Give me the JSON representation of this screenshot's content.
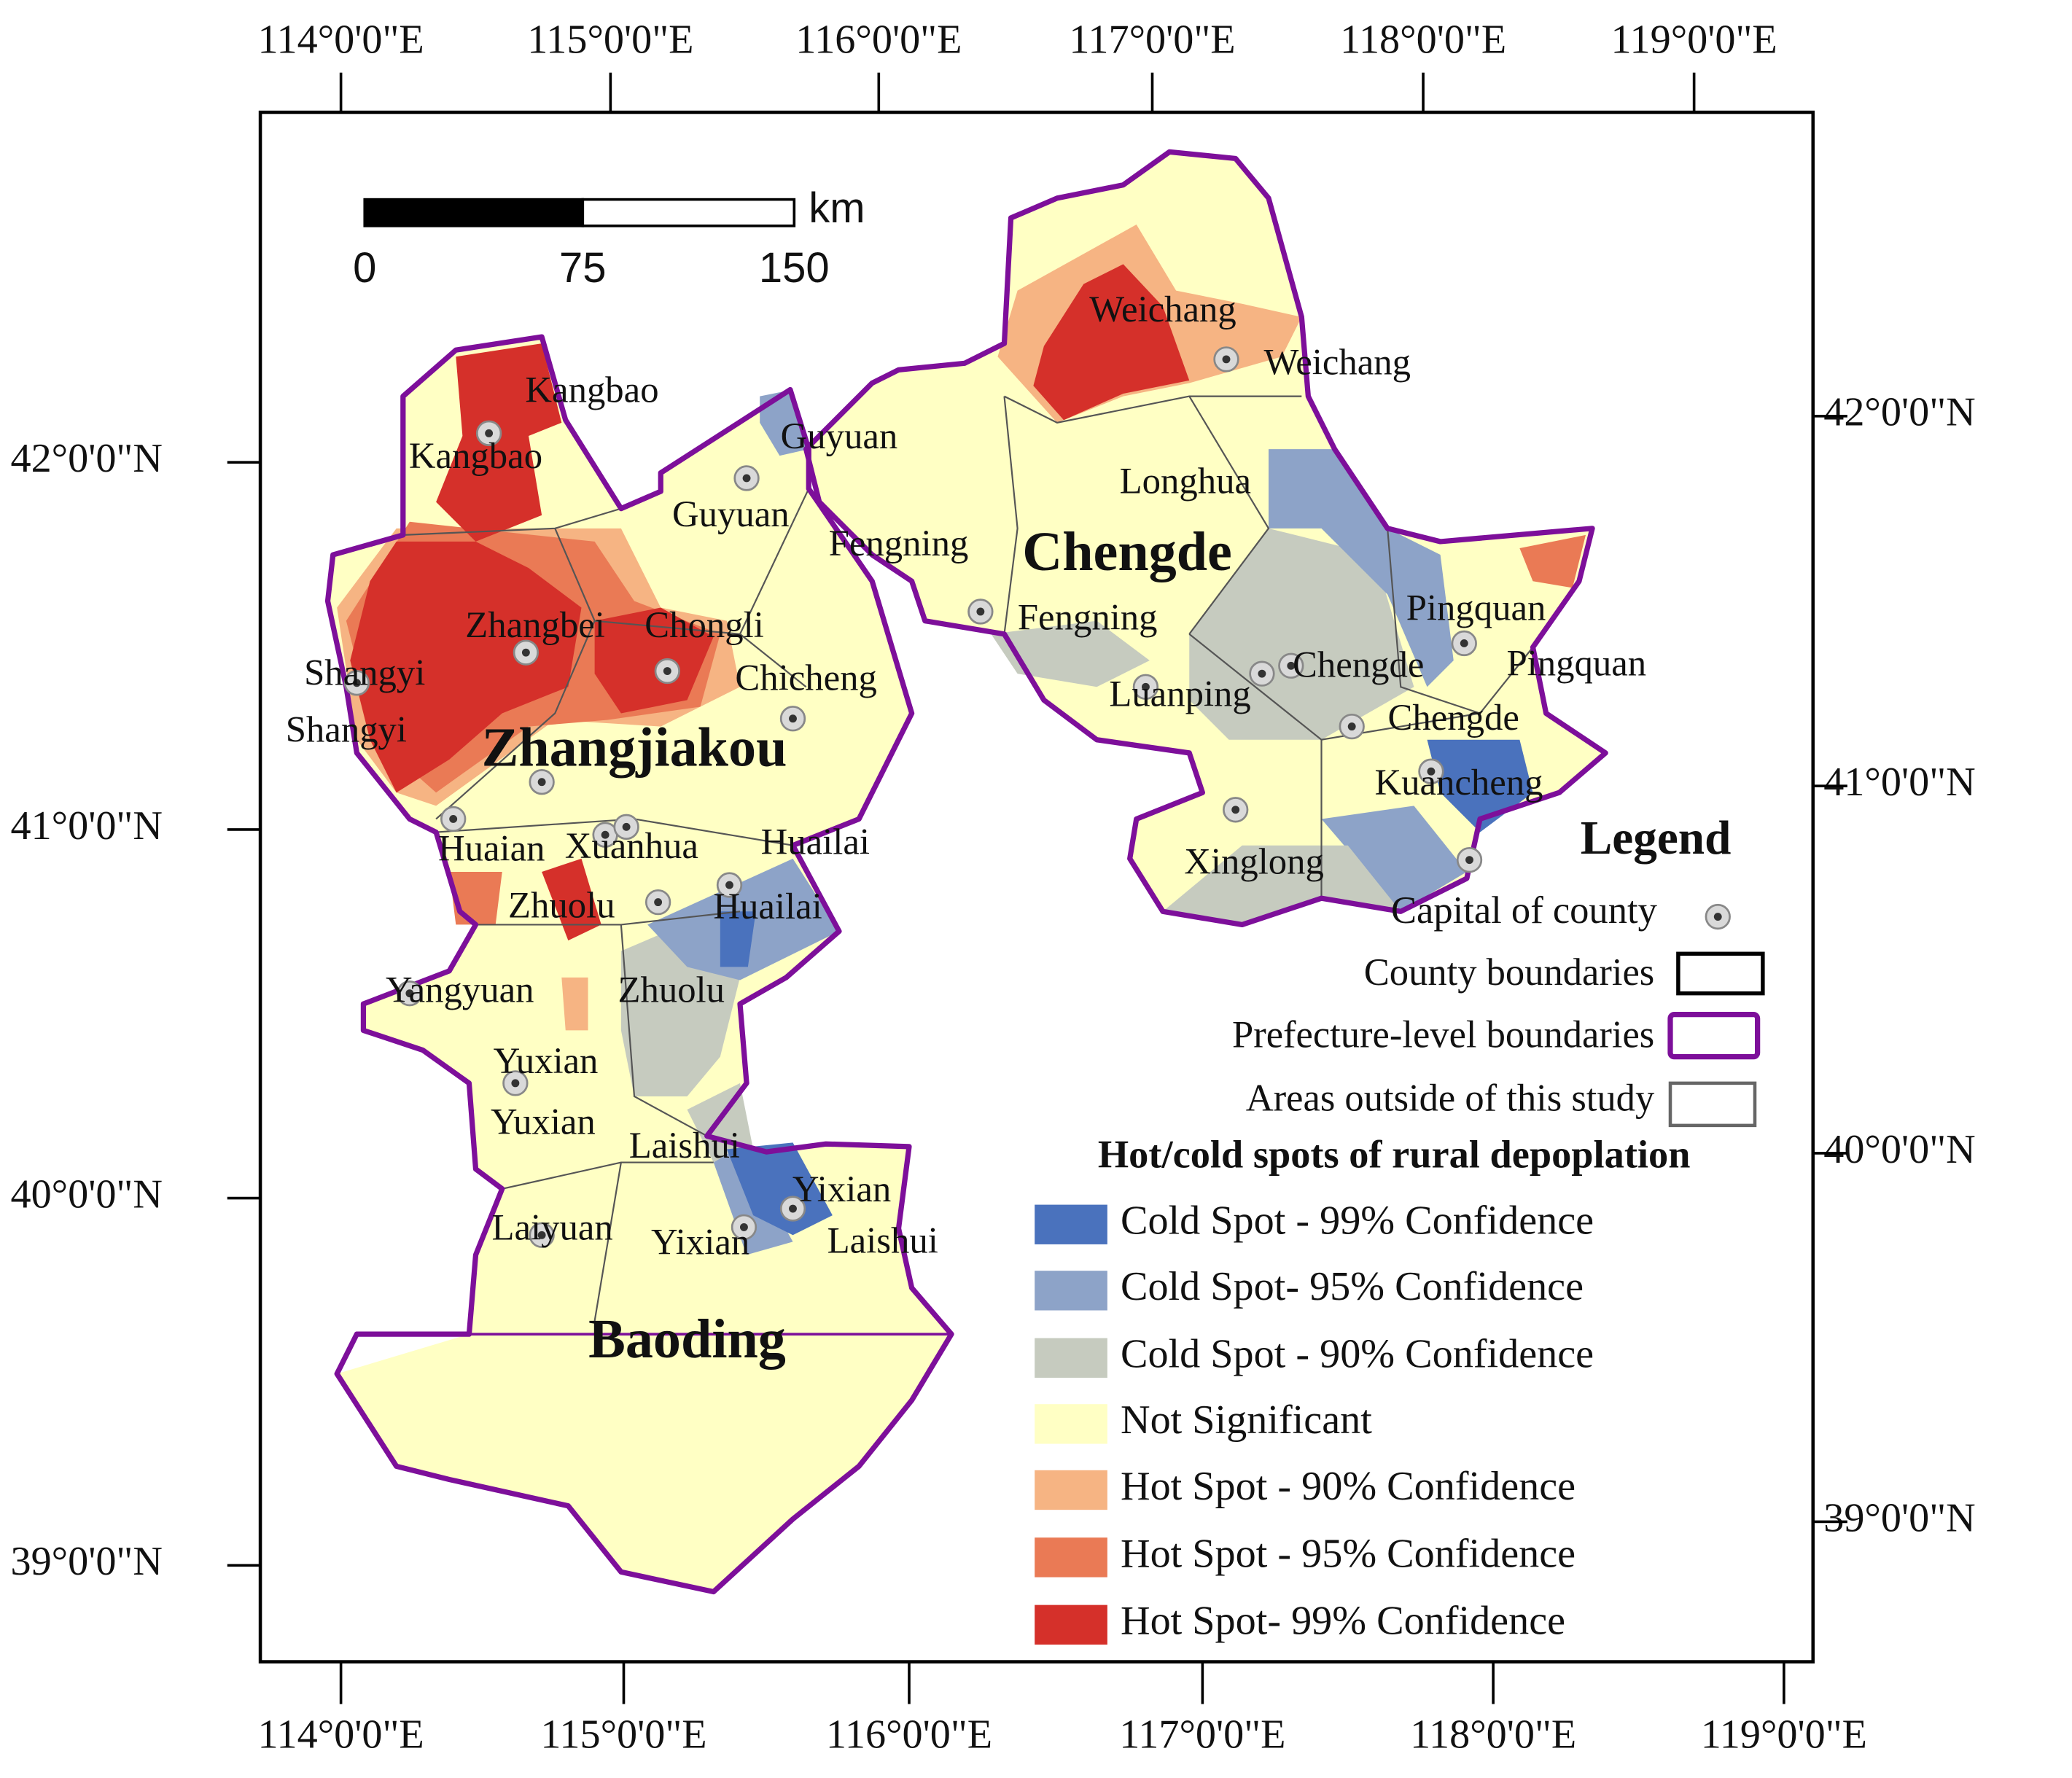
{
  "axes": {
    "top": [
      "114°0'0\"E",
      "115°0'0\"E",
      "116°0'0\"E",
      "117°0'0\"E",
      "118°0'0\"E",
      "119°0'0\"E"
    ],
    "bottom": [
      "114°0'0\"E",
      "115°0'0\"E",
      "116°0'0\"E",
      "117°0'0\"E",
      "118°0'0\"E",
      "119°0'0\"E"
    ],
    "left": [
      "42°0'0\"N",
      "41°0'0\"N",
      "40°0'0\"N",
      "39°0'0\"N"
    ],
    "right": [
      "42°0'0\"N",
      "41°0'0\"N",
      "40°0'0\"N",
      "39°0'0\"N"
    ]
  },
  "scale_bar": {
    "ticks": [
      "0",
      "75",
      "150"
    ],
    "unit": "km"
  },
  "map": {
    "prefectures": [
      "Zhangjiakou",
      "Chengde",
      "Baoding"
    ],
    "places": [
      "Weichang",
      "Weichang",
      "Kangbao",
      "Kangbao",
      "Guyuan",
      "Guyuan",
      "Longhua",
      "Fengning",
      "Fengning",
      "Pingquan",
      "Pingquan",
      "Zhangbei",
      "Chongli",
      "Shangyi",
      "Chicheng",
      "Chengde",
      "Luanping",
      "Shangyi",
      "Chengde",
      "Kuancheng",
      "Huaian",
      "Xuanhua",
      "Huailai",
      "Xinglong",
      "Zhuolu",
      "Huailai",
      "Yangyuan",
      "Zhuolu",
      "Yuxian",
      "Yuxian",
      "Laishui",
      "Yixian",
      "Laiyuan",
      "Yixian",
      "Laishui"
    ]
  },
  "legend": {
    "title": "Legend",
    "symbols": [
      "Capital of county",
      "County boundaries",
      "Prefecture-level boundaries",
      "Areas outside of this study"
    ],
    "heading": "Hot/cold spots of rural depoplation",
    "classes": [
      {
        "label": "Cold Spot - 99% Confidence",
        "color": "#4a72bd"
      },
      {
        "label": "Cold Spot- 95% Confidence",
        "color": "#8da3c8"
      },
      {
        "label": "Cold Spot - 90% Confidence",
        "color": "#c6cbbf"
      },
      {
        "label": "Not Significant",
        "color": "#ffffc4"
      },
      {
        "label": "Hot Spot - 90% Confidence",
        "color": "#f6b483"
      },
      {
        "label": "Hot Spot - 95% Confidence",
        "color": "#ea7a55"
      },
      {
        "label": "Hot Spot- 99% Confidence",
        "color": "#d5302a"
      }
    ]
  }
}
